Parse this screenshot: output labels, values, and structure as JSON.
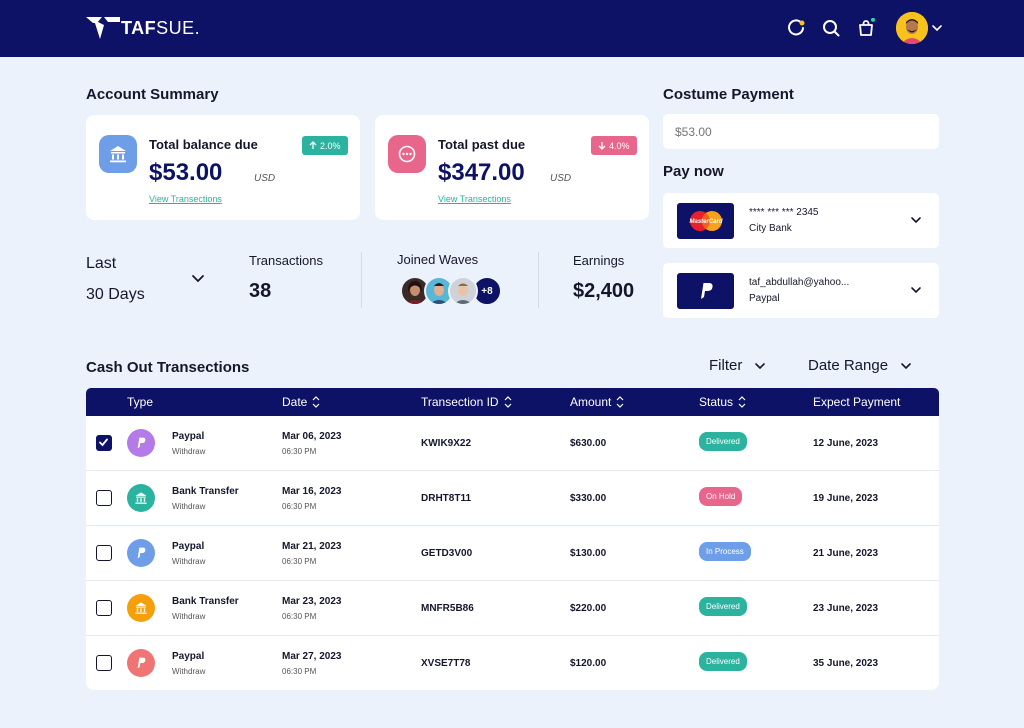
{
  "brand": {
    "name_bold": "TAF",
    "name_light": "SUE."
  },
  "header": {
    "icons": [
      "loader-icon",
      "search-icon",
      "bag-icon",
      "avatar",
      "chevron-down-icon"
    ]
  },
  "summary": {
    "title": "Account Summary",
    "cards": [
      {
        "label": "Total balance due",
        "amount": "$53.00",
        "currency": "USD",
        "link": "View Transections",
        "badge": "2.0%",
        "badge_dir": "up",
        "badge_color": "#2bb3a0",
        "icon_bg": "#6f9ee8",
        "icon": "bank-icon"
      },
      {
        "label": "Total past due",
        "amount": "$347.00",
        "currency": "USD",
        "link": "View Transections",
        "badge": "4.0%",
        "badge_dir": "down",
        "badge_color": "#e8658c",
        "icon_bg": "#e8658c",
        "icon": "more-icon"
      }
    ]
  },
  "stats": {
    "period_line1": "Last",
    "period_line2": "30 Days",
    "transactions_label": "Transactions",
    "transactions_value": "38",
    "joined_label": "Joined Waves",
    "joined_more": "+8",
    "earnings_label": "Earnings",
    "earnings_value": "$2,400"
  },
  "custom_payment": {
    "title": "Costume Payment",
    "placeholder": "$53.00"
  },
  "pay_now": {
    "title": "Pay now",
    "methods": [
      {
        "line1": "**** *** *** 2345",
        "line2": "City Bank",
        "logo": "mastercard",
        "logo_text": "MasterCard"
      },
      {
        "line1": "taf_abdullah@yahoo...",
        "line2": "Paypal",
        "logo": "paypal"
      }
    ]
  },
  "transactions": {
    "title": "Cash Out Transections",
    "filter_label": "Filter",
    "date_range_label": "Date Range",
    "columns": [
      "Type",
      "Date",
      "Transection ID",
      "Amount",
      "Status",
      "Expect Payment"
    ],
    "rows": [
      {
        "checked": true,
        "type": "Paypal",
        "sub": "Withdraw",
        "icon": "paypal",
        "icon_color": "#b47ae8",
        "date": "Mar 06, 2023",
        "time": "06:30 PM",
        "id": "KWIK9X22",
        "amount": "$630.00",
        "status": "Delivered",
        "status_color": "#2bb3a0",
        "expect": "12 June, 2023"
      },
      {
        "checked": false,
        "type": "Bank Transfer",
        "sub": "Withdraw",
        "icon": "bank",
        "icon_color": "#2bb3a0",
        "date": "Mar 16, 2023",
        "time": "06:30 PM",
        "id": "DRHT8T11",
        "amount": "$330.00",
        "status": "On Hold",
        "status_color": "#e8658c",
        "expect": "19 June, 2023"
      },
      {
        "checked": false,
        "type": "Paypal",
        "sub": "Withdraw",
        "icon": "paypal",
        "icon_color": "#6f9ee8",
        "date": "Mar 21, 2023",
        "time": "06:30 PM",
        "id": "GETD3V00",
        "amount": "$130.00",
        "status": "In Process",
        "status_color": "#6f9ee8",
        "expect": "21 June, 2023"
      },
      {
        "checked": false,
        "type": "Bank Transfer",
        "sub": "Withdraw",
        "icon": "bank",
        "icon_color": "#f59f0b",
        "date": "Mar 23, 2023",
        "time": "06:30 PM",
        "id": "MNFR5B86",
        "amount": "$220.00",
        "status": "Delivered",
        "status_color": "#2bb3a0",
        "expect": "23 June, 2023"
      },
      {
        "checked": false,
        "type": "Paypal",
        "sub": "Withdraw",
        "icon": "paypal",
        "icon_color": "#f07474",
        "date": "Mar 27, 2023",
        "time": "06:30 PM",
        "id": "XVSE7T78",
        "amount": "$120.00",
        "status": "Delivered",
        "status_color": "#2bb3a0",
        "expect": "35 June, 2023"
      }
    ]
  }
}
